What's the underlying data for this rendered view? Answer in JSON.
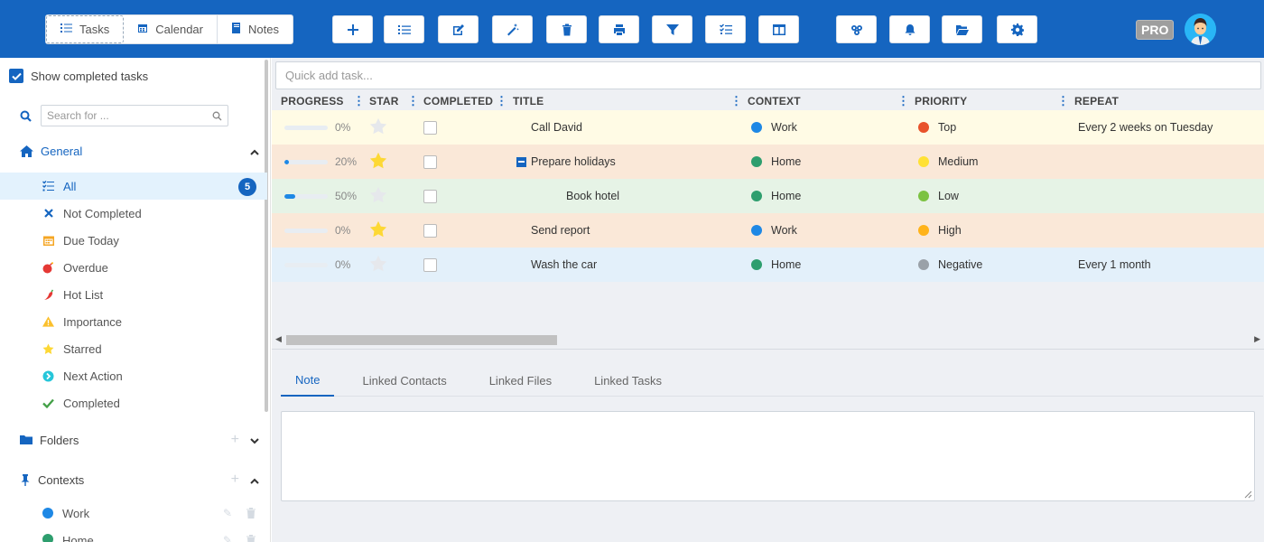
{
  "colors": {
    "brand": "#1565c0",
    "accent": "#1e88e5"
  },
  "views": [
    {
      "label": "Tasks",
      "icon": "tasks-icon",
      "active": true
    },
    {
      "label": "Calendar",
      "icon": "calendar-icon",
      "active": false
    },
    {
      "label": "Notes",
      "icon": "notes-icon",
      "active": false
    }
  ],
  "toolbar_buttons": [
    {
      "name": "add-task-button",
      "icon": "plus-icon"
    },
    {
      "name": "list-view-button",
      "icon": "list-icon"
    },
    {
      "name": "edit-task-button",
      "icon": "edit-icon"
    },
    {
      "name": "magic-button",
      "icon": "magic-wand-icon"
    },
    {
      "name": "delete-button",
      "icon": "trash-icon"
    },
    {
      "name": "print-button",
      "icon": "print-icon"
    },
    {
      "name": "filter-button",
      "icon": "filter-icon"
    },
    {
      "name": "checklist-button",
      "icon": "checklist-icon"
    },
    {
      "name": "columns-button",
      "icon": "columns-icon"
    },
    {
      "name": "sync-button",
      "icon": "sync-icon"
    },
    {
      "name": "notifications-button",
      "icon": "bell-icon"
    },
    {
      "name": "open-folder-button",
      "icon": "folder-open-icon"
    },
    {
      "name": "settings-button",
      "icon": "gear-icon"
    }
  ],
  "pro_label": "PRO",
  "sidebar": {
    "show_completed_label": "Show completed tasks",
    "show_completed_checked": true,
    "search_placeholder": "Search for ...",
    "general_label": "General",
    "items": [
      {
        "label": "All",
        "icon": "list-check-icon",
        "badge": "5",
        "active": true
      },
      {
        "label": "Not Completed",
        "icon": "x-mark-icon"
      },
      {
        "label": "Due Today",
        "icon": "calendar-icon"
      },
      {
        "label": "Overdue",
        "icon": "bomb-icon"
      },
      {
        "label": "Hot List",
        "icon": "chili-pepper-icon"
      },
      {
        "label": "Importance",
        "icon": "warning-icon"
      },
      {
        "label": "Starred",
        "icon": "star-icon"
      },
      {
        "label": "Next Action",
        "icon": "next-action-icon"
      },
      {
        "label": "Completed",
        "icon": "checkmark-icon"
      }
    ],
    "folders_label": "Folders",
    "contexts_label": "Contexts",
    "contexts": [
      {
        "label": "Work",
        "color": "#1e88e5"
      },
      {
        "label": "Home",
        "color": "#2e9e6e"
      }
    ]
  },
  "quick_add_placeholder": "Quick add task...",
  "columns": {
    "progress": "PROGRESS",
    "star": "STAR",
    "completed": "COMPLETED",
    "title": "TITLE",
    "context": "CONTEXT",
    "priority": "PRIORITY",
    "repeat": "REPEAT"
  },
  "tasks": [
    {
      "progress": 0,
      "progress_label": "0%",
      "starred": false,
      "completed": false,
      "title": "Call David",
      "indent": 0,
      "collapsible": false,
      "context": "Work",
      "context_color": "#1e88e5",
      "priority": "Top",
      "priority_color": "#e8522a",
      "repeat": "Every 2 weeks on Tuesday",
      "row_color": "#fffbe5"
    },
    {
      "progress": 20,
      "progress_label": "20%",
      "starred": true,
      "completed": false,
      "title": "Prepare holidays",
      "indent": 0,
      "collapsible": true,
      "context": "Home",
      "context_color": "#2e9e6e",
      "priority": "Medium",
      "priority_color": "#ffe135",
      "repeat": "",
      "row_color": "#fae8d8"
    },
    {
      "progress": 50,
      "progress_label": "50%",
      "starred": false,
      "completed": false,
      "title": "Book hotel",
      "indent": 1,
      "collapsible": false,
      "context": "Home",
      "context_color": "#2e9e6e",
      "priority": "Low",
      "priority_color": "#7cc242",
      "repeat": "",
      "row_color": "#e6f3e6"
    },
    {
      "progress": 0,
      "progress_label": "0%",
      "starred": true,
      "completed": false,
      "title": "Send report",
      "indent": 0,
      "collapsible": false,
      "context": "Work",
      "context_color": "#1e88e5",
      "priority": "High",
      "priority_color": "#ffb31a",
      "repeat": "",
      "row_color": "#fae8d8"
    },
    {
      "progress": 0,
      "progress_label": "0%",
      "starred": false,
      "completed": false,
      "title": "Wash the car",
      "indent": 0,
      "collapsible": false,
      "context": "Home",
      "context_color": "#2e9e6e",
      "priority": "Negative",
      "priority_color": "#9aa1a8",
      "repeat": "Every 1 month",
      "row_color": "#e3f0fa"
    }
  ],
  "detail_tabs": [
    {
      "label": "Note",
      "active": true
    },
    {
      "label": "Linked Contacts",
      "active": false
    },
    {
      "label": "Linked Files",
      "active": false
    },
    {
      "label": "Linked Tasks",
      "active": false
    }
  ]
}
